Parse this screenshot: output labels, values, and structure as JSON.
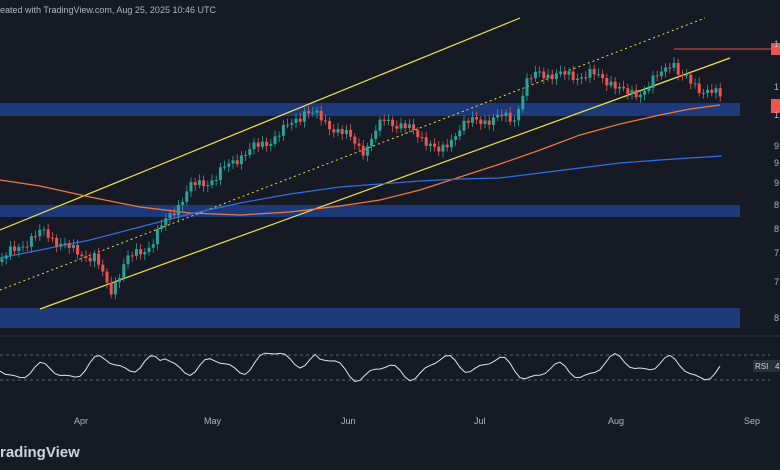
{
  "header": {
    "text": "eated with TradingView.com, Aug 25, 2025 10:46 UTC"
  },
  "footer": {
    "logo_text": "radingView"
  },
  "rsi_label": "RSI",
  "rsi_value": "4",
  "colors": {
    "background": "#161a25",
    "up_candle": "#26a69a",
    "down_candle": "#ef5350",
    "channel_line": "#f0e442",
    "zone_fill": "#1f3f8a",
    "ma_orange": "#f2793a",
    "ma_blue": "#2f6fe4",
    "rsi_line": "#dfe3ea"
  },
  "chart_data": {
    "type": "candlestick",
    "x_tick_labels": [
      "Apr",
      "May",
      "Jun",
      "Jul",
      "Aug",
      "Sep"
    ],
    "y_axis_partial_labels": [
      "1",
      "1",
      "1",
      "9",
      "9",
      "9",
      "8",
      "8",
      "7",
      "7",
      "8"
    ],
    "horizontal_zones": [
      {
        "name": "upper zone",
        "level": 0.66
      },
      {
        "name": "middle zone",
        "level": 0.36
      },
      {
        "name": "lower zone",
        "level": 0.04
      }
    ],
    "channel": {
      "style": "ascending parallel channel with dotted median line"
    },
    "indicator": {
      "name": "RSI",
      "value_shown": "4"
    },
    "last_price_marker_color": "#ef5350"
  }
}
